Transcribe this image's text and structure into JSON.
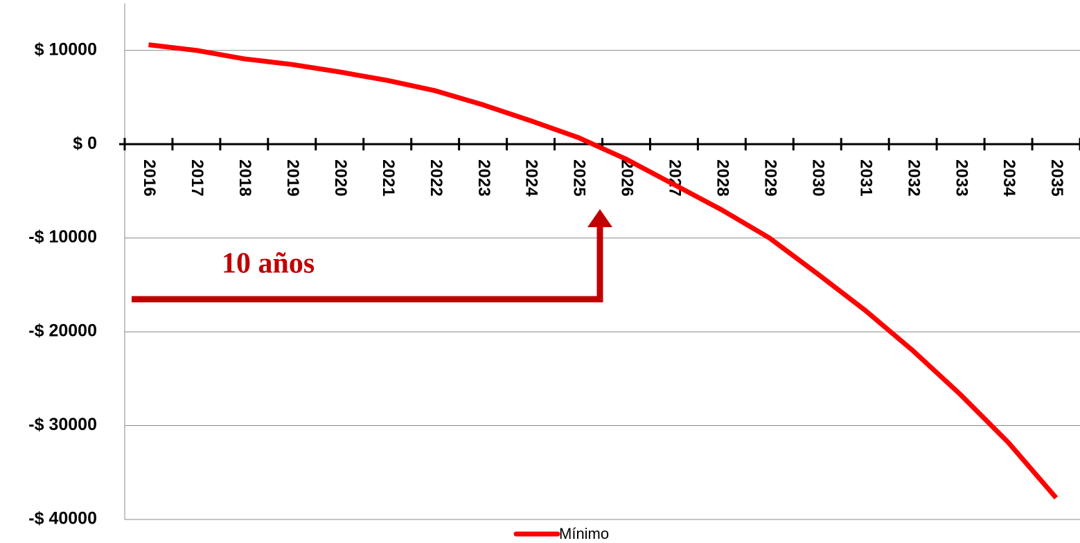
{
  "chart_data": {
    "type": "line",
    "categories": [
      "2016",
      "2017",
      "2018",
      "2019",
      "2020",
      "2021",
      "2022",
      "2023",
      "2024",
      "2025",
      "2026",
      "2027",
      "2028",
      "2029",
      "2030",
      "2031",
      "2032",
      "2033",
      "2034",
      "2035"
    ],
    "series": [
      {
        "name": "Mínimo",
        "color": "#ff0000",
        "values": [
          10600,
          10000,
          9100,
          8500,
          7700,
          6800,
          5700,
          4200,
          2500,
          700,
          -1600,
          -4300,
          -7000,
          -10000,
          -13800,
          -17700,
          -22000,
          -26700,
          -31800,
          -37700
        ]
      }
    ],
    "ylim": [
      -40000,
      15000
    ],
    "yticks": [
      {
        "value": 10000,
        "label": "$ 10000"
      },
      {
        "value": 0,
        "label": "$ 0"
      },
      {
        "value": -10000,
        "label": "-$ 10000"
      },
      {
        "value": -20000,
        "label": "-$ 20000"
      },
      {
        "value": -30000,
        "label": "-$ 30000"
      },
      {
        "value": -40000,
        "label": "-$ 40000"
      }
    ],
    "grid": true,
    "legend": "bottom",
    "annotation": "10 años"
  }
}
